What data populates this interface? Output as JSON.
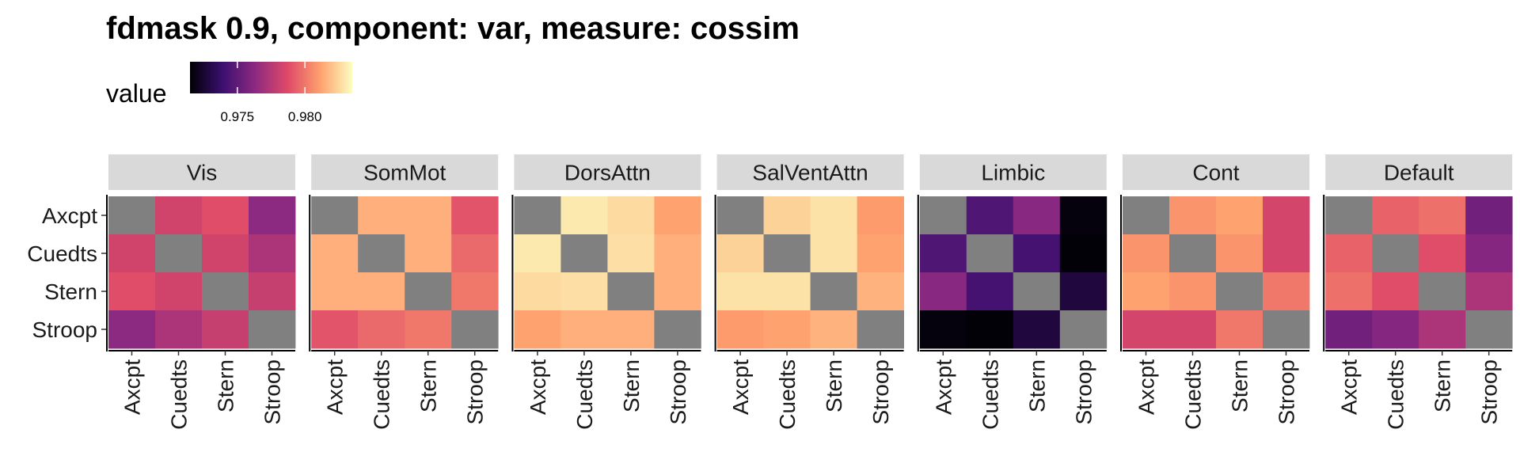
{
  "chart_data": {
    "type": "heatmap",
    "title": "fdmask 0.9, component: var, measure: cossim",
    "legend": {
      "title": "value",
      "placement": "top",
      "colormap": "magma",
      "range": [
        0.9715,
        0.9835
      ],
      "ticks": [
        0.975,
        0.98
      ],
      "tick_labels": [
        "0.975",
        "0.980"
      ],
      "colors": [
        "#000004",
        "#3b0f70",
        "#8c2981",
        "#de4968",
        "#fe9f6d",
        "#fcfdbf"
      ]
    },
    "na_color": "#808080",
    "rows": [
      "Axcpt",
      "Cuedts",
      "Stern",
      "Stroop"
    ],
    "columns": [
      "Axcpt",
      "Cuedts",
      "Stern",
      "Stroop"
    ],
    "panels": [
      {
        "name": "Vis",
        "values": [
          [
            null,
            0.9783,
            0.9788,
            0.9763
          ],
          [
            0.9783,
            null,
            0.9783,
            0.9772
          ],
          [
            0.9788,
            0.9783,
            null,
            0.978
          ],
          [
            0.9763,
            0.9772,
            0.978,
            null
          ]
        ]
      },
      {
        "name": "SomMot",
        "values": [
          [
            null,
            0.9815,
            0.9815,
            0.979
          ],
          [
            0.9815,
            null,
            0.9815,
            0.9796
          ],
          [
            0.9815,
            0.9815,
            null,
            0.98
          ],
          [
            0.979,
            0.9796,
            0.98,
            null
          ]
        ]
      },
      {
        "name": "DorsAttn",
        "values": [
          [
            null,
            0.983,
            0.9826,
            0.9812
          ],
          [
            0.983,
            null,
            0.9827,
            0.9815
          ],
          [
            0.9826,
            0.9827,
            null,
            0.9815
          ],
          [
            0.9812,
            0.9815,
            0.9815,
            null
          ]
        ]
      },
      {
        "name": "SalVentAttn",
        "values": [
          [
            null,
            0.9824,
            0.9828,
            0.981
          ],
          [
            0.9824,
            null,
            0.9828,
            0.9812
          ],
          [
            0.9828,
            0.9828,
            null,
            0.9816
          ],
          [
            0.981,
            0.9812,
            0.9816,
            null
          ]
        ]
      },
      {
        "name": "Limbic",
        "values": [
          [
            null,
            0.9745,
            0.9762,
            0.9717
          ],
          [
            0.9745,
            null,
            0.9742,
            0.9716
          ],
          [
            0.9762,
            0.9742,
            null,
            0.9728
          ],
          [
            0.9717,
            0.9716,
            0.9728,
            null
          ]
        ]
      },
      {
        "name": "Cont",
        "values": [
          [
            null,
            0.9808,
            0.9812,
            0.9784
          ],
          [
            0.9808,
            null,
            0.9808,
            0.9784
          ],
          [
            0.9812,
            0.9808,
            null,
            0.98
          ],
          [
            0.9784,
            0.9784,
            0.98,
            null
          ]
        ]
      },
      {
        "name": "Default",
        "values": [
          [
            null,
            0.9794,
            0.9798,
            0.9755
          ],
          [
            0.9794,
            null,
            0.9788,
            0.9761
          ],
          [
            0.9798,
            0.9788,
            null,
            0.9772
          ],
          [
            0.9755,
            0.9761,
            0.9772,
            null
          ]
        ]
      }
    ]
  }
}
